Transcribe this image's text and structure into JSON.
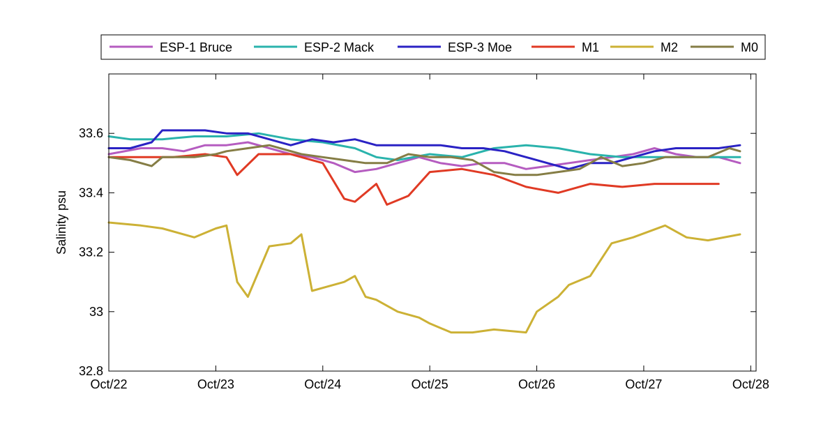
{
  "chart_data": {
    "type": "line",
    "title": "",
    "xlabel": "",
    "ylabel": "Salinity psu",
    "xlim": [
      "2007-10-22",
      "2007-10-28"
    ],
    "ylim": [
      32.8,
      33.8
    ],
    "x_ticks": [
      "Oct/22",
      "Oct/23",
      "Oct/24",
      "Oct/25",
      "Oct/26",
      "Oct/27",
      "Oct/28"
    ],
    "y_ticks": [
      "32.8",
      "33",
      "33.2",
      "33.4",
      "33.6"
    ],
    "y_tick_values": [
      32.8,
      33.0,
      33.2,
      33.4,
      33.6
    ],
    "grid": false,
    "legend_position": "top, outside plot, single row",
    "x_unit": "days after Oct/22",
    "series": [
      {
        "name": "ESP-1 Bruce",
        "color": "#b55cc0",
        "x": [
          0.0,
          0.3,
          0.5,
          0.7,
          0.9,
          1.1,
          1.3,
          1.5,
          1.7,
          1.9,
          2.1,
          2.3,
          2.5,
          2.7,
          2.9,
          3.1,
          3.3,
          3.5,
          3.7,
          3.9,
          4.1,
          4.3,
          4.5,
          4.7,
          4.9,
          5.1,
          5.3,
          5.5,
          5.7,
          5.9
        ],
        "values": [
          33.53,
          33.55,
          33.55,
          33.54,
          33.56,
          33.56,
          33.57,
          33.55,
          33.53,
          33.52,
          33.5,
          33.47,
          33.48,
          33.5,
          33.52,
          33.5,
          33.49,
          33.5,
          33.5,
          33.48,
          33.49,
          33.5,
          33.51,
          33.52,
          33.53,
          33.55,
          33.53,
          33.52,
          33.52,
          33.5
        ]
      },
      {
        "name": "ESP-2 Mack",
        "color": "#2ab3ac",
        "x": [
          0.0,
          0.2,
          0.5,
          0.8,
          1.1,
          1.4,
          1.7,
          2.0,
          2.3,
          2.5,
          2.7,
          3.0,
          3.3,
          3.6,
          3.9,
          4.2,
          4.5,
          4.8,
          5.1,
          5.4,
          5.7,
          5.9
        ],
        "values": [
          33.59,
          33.58,
          33.58,
          33.59,
          33.59,
          33.6,
          33.58,
          33.57,
          33.55,
          33.52,
          33.51,
          33.53,
          33.52,
          33.55,
          33.56,
          33.55,
          33.53,
          33.52,
          33.52,
          33.52,
          33.52,
          33.52
        ]
      },
      {
        "name": "ESP-3 Moe",
        "color": "#2a22c4",
        "x": [
          0.0,
          0.2,
          0.4,
          0.5,
          0.7,
          0.9,
          1.1,
          1.3,
          1.5,
          1.7,
          1.9,
          2.1,
          2.3,
          2.5,
          2.7,
          2.9,
          3.1,
          3.3,
          3.5,
          3.7,
          3.9,
          4.1,
          4.3,
          4.5,
          4.7,
          4.9,
          5.1,
          5.3,
          5.5,
          5.7,
          5.9
        ],
        "values": [
          33.55,
          33.55,
          33.57,
          33.61,
          33.61,
          33.61,
          33.6,
          33.6,
          33.58,
          33.56,
          33.58,
          33.57,
          33.58,
          33.56,
          33.56,
          33.56,
          33.56,
          33.55,
          33.55,
          33.54,
          33.52,
          33.5,
          33.48,
          33.5,
          33.5,
          33.52,
          33.54,
          33.55,
          33.55,
          33.55,
          33.56
        ]
      },
      {
        "name": "M1",
        "color": "#e03a24",
        "x": [
          0.0,
          0.3,
          0.6,
          0.9,
          1.1,
          1.2,
          1.4,
          1.7,
          1.8,
          2.0,
          2.2,
          2.3,
          2.5,
          2.6,
          2.8,
          3.0,
          3.3,
          3.6,
          3.9,
          4.2,
          4.5,
          4.8,
          5.1,
          5.4,
          5.7
        ],
        "values": [
          33.52,
          33.52,
          33.52,
          33.53,
          33.52,
          33.46,
          33.53,
          33.53,
          33.52,
          33.5,
          33.38,
          33.37,
          33.43,
          33.36,
          33.39,
          33.47,
          33.48,
          33.46,
          33.42,
          33.4,
          33.43,
          33.42,
          33.43,
          33.43,
          33.43
        ]
      },
      {
        "name": "M2",
        "color": "#ccb135",
        "x": [
          0.0,
          0.3,
          0.5,
          0.8,
          1.0,
          1.1,
          1.2,
          1.3,
          1.5,
          1.7,
          1.8,
          1.9,
          2.0,
          2.2,
          2.3,
          2.4,
          2.5,
          2.7,
          2.9,
          3.0,
          3.2,
          3.4,
          3.6,
          3.9,
          4.0,
          4.2,
          4.3,
          4.5,
          4.7,
          4.9,
          5.2,
          5.4,
          5.6,
          5.9
        ],
        "values": [
          33.3,
          33.29,
          33.28,
          33.25,
          33.28,
          33.29,
          33.1,
          33.05,
          33.22,
          33.23,
          33.26,
          33.07,
          33.08,
          33.1,
          33.12,
          33.05,
          33.04,
          33.0,
          32.98,
          32.96,
          32.93,
          32.93,
          32.94,
          32.93,
          33.0,
          33.05,
          33.09,
          33.12,
          33.23,
          33.25,
          33.29,
          33.25,
          33.24,
          33.26
        ]
      },
      {
        "name": "M0",
        "color": "#857d45",
        "x": [
          0.0,
          0.2,
          0.4,
          0.5,
          0.8,
          1.0,
          1.1,
          1.3,
          1.5,
          1.8,
          2.0,
          2.2,
          2.4,
          2.6,
          2.8,
          3.0,
          3.2,
          3.4,
          3.6,
          3.8,
          4.0,
          4.2,
          4.4,
          4.6,
          4.8,
          5.0,
          5.2,
          5.4,
          5.6,
          5.8,
          5.9
        ],
        "values": [
          33.52,
          33.51,
          33.49,
          33.52,
          33.52,
          33.53,
          33.54,
          33.55,
          33.56,
          33.53,
          33.52,
          33.51,
          33.5,
          33.5,
          33.53,
          33.52,
          33.52,
          33.51,
          33.47,
          33.46,
          33.46,
          33.47,
          33.48,
          33.52,
          33.49,
          33.5,
          33.52,
          33.52,
          33.52,
          33.55,
          33.54
        ]
      }
    ]
  }
}
